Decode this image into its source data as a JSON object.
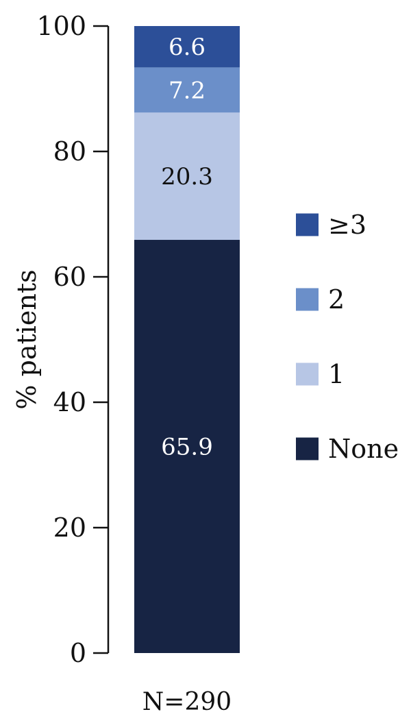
{
  "chart_data": {
    "type": "bar",
    "stacked": true,
    "categories": [
      "N=290"
    ],
    "series": [
      {
        "name": "None",
        "values": [
          65.9
        ],
        "color": "#172444",
        "label_color": "#ffffff"
      },
      {
        "name": "1",
        "values": [
          20.3
        ],
        "color": "#b7c6e5",
        "label_color": "#111111"
      },
      {
        "name": "2",
        "values": [
          7.2
        ],
        "color": "#6b8fc9",
        "label_color": "#ffffff"
      },
      {
        "name": "≥3",
        "values": [
          6.6
        ],
        "color": "#2c4f98",
        "label_color": "#ffffff"
      }
    ],
    "ylabel": "% patients",
    "xlabel": "",
    "ylim": [
      0,
      100
    ],
    "yticks": [
      0,
      20,
      40,
      60,
      80,
      100
    ],
    "legend_position": "right",
    "legend_order": [
      "≥3",
      "2",
      "1",
      "None"
    ],
    "grid": false
  }
}
